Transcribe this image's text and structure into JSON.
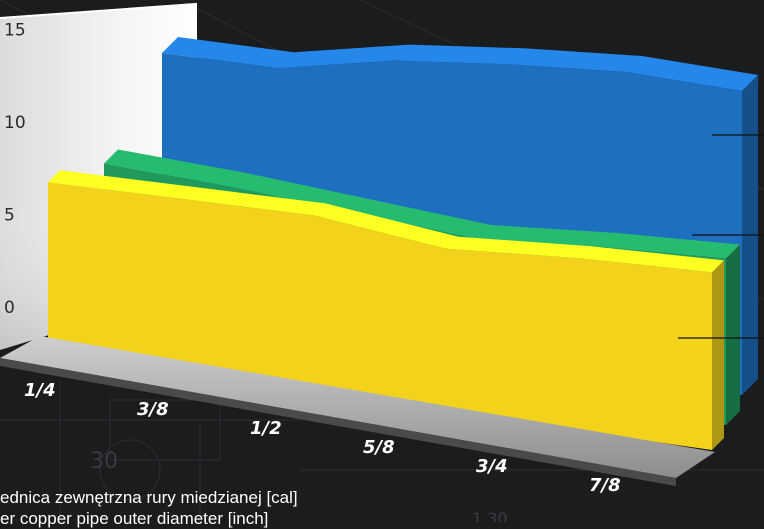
{
  "chart_data": {
    "type": "area",
    "categories": [
      "1/4",
      "3/8",
      "1/2",
      "5/8",
      "3/4",
      "7/8"
    ],
    "yticks": [
      0,
      5,
      10,
      15
    ],
    "ylim": [
      0,
      16
    ],
    "series": [
      {
        "values": [
          7.2,
          7.3,
          7.4,
          6.8,
          7.2,
          7.4
        ],
        "color": "#f2d21b"
      },
      {
        "values": [
          9.0,
          8.8,
          8.4,
          8.0,
          8.6,
          9.0
        ],
        "color": "#1f9a5c"
      },
      {
        "values": [
          13.0,
          13.2,
          14.6,
          15.4,
          16.0,
          16.0
        ],
        "color": "#1f6fc0"
      }
    ]
  },
  "caption": {
    "line1": "ednica zewnętrzna rury miedzianej [cal]",
    "line2": "er copper pipe outer diameter [inch]"
  },
  "background": {
    "num1": "30",
    "num2": "1.30"
  }
}
